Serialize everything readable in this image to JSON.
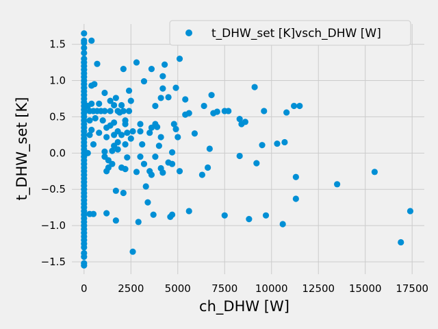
{
  "chart_data": {
    "type": "scatter",
    "xlabel": "ch_DHW [W]",
    "ylabel": "t_DHW_set [K]",
    "xlim": [
      -650,
      18150
    ],
    "ylim": [
      -1.67,
      1.78
    ],
    "xticks": [
      0,
      2500,
      5000,
      7500,
      10000,
      12500,
      15000,
      17500
    ],
    "yticks": [
      -1.5,
      -1.0,
      -0.5,
      0.0,
      0.5,
      1.0,
      1.5
    ],
    "xtick_labels": [
      "0",
      "2500",
      "5000",
      "7500",
      "10000",
      "12500",
      "15000",
      "17500"
    ],
    "ytick_labels": [
      "−1.5",
      "−1.0",
      "−0.5",
      "0.0",
      "0.5",
      "1.0",
      "1.5"
    ],
    "grid": true,
    "legend_position": "top-right",
    "series": [
      {
        "name": "t_DHW_set [K]vsch_DHW [W]",
        "color": "#008fd5",
        "points": [
          [
            0,
            1.65
          ],
          [
            0,
            1.55
          ],
          [
            0,
            1.52
          ],
          [
            0,
            1.45
          ],
          [
            0,
            1.38
          ],
          [
            0,
            1.3
          ],
          [
            0,
            1.25
          ],
          [
            0,
            1.2
          ],
          [
            0,
            1.15
          ],
          [
            0,
            1.1
          ],
          [
            0,
            1.05
          ],
          [
            0,
            1.0
          ],
          [
            0,
            0.95
          ],
          [
            0,
            0.9
          ],
          [
            0,
            0.85
          ],
          [
            0,
            0.8
          ],
          [
            0,
            0.75
          ],
          [
            0,
            0.7
          ],
          [
            0,
            0.65
          ],
          [
            0,
            0.6
          ],
          [
            0,
            0.55
          ],
          [
            0,
            0.5
          ],
          [
            0,
            0.45
          ],
          [
            0,
            0.4
          ],
          [
            0,
            0.35
          ],
          [
            0,
            0.3
          ],
          [
            0,
            0.25
          ],
          [
            0,
            0.2
          ],
          [
            0,
            0.15
          ],
          [
            0,
            0.1
          ],
          [
            0,
            0.05
          ],
          [
            0,
            0.0
          ],
          [
            0,
            -0.05
          ],
          [
            0,
            -0.1
          ],
          [
            0,
            -0.15
          ],
          [
            0,
            -0.2
          ],
          [
            0,
            -0.25
          ],
          [
            0,
            -0.3
          ],
          [
            0,
            -0.35
          ],
          [
            0,
            -0.4
          ],
          [
            0,
            -0.45
          ],
          [
            0,
            -0.5
          ],
          [
            0,
            -0.55
          ],
          [
            0,
            -0.6
          ],
          [
            0,
            -0.65
          ],
          [
            0,
            -0.7
          ],
          [
            0,
            -0.75
          ],
          [
            0,
            -0.8
          ],
          [
            0,
            -0.85
          ],
          [
            0,
            -0.9
          ],
          [
            0,
            -0.95
          ],
          [
            0,
            -1.0
          ],
          [
            0,
            -1.05
          ],
          [
            0,
            -1.1
          ],
          [
            0,
            -1.15
          ],
          [
            0,
            -1.2
          ],
          [
            0,
            -1.25
          ],
          [
            0,
            -1.3
          ],
          [
            0,
            -1.38
          ],
          [
            0,
            -1.43
          ],
          [
            0,
            -1.52
          ],
          [
            0,
            -1.55
          ],
          [
            400,
            1.55
          ],
          [
            700,
            1.23
          ],
          [
            550,
            0.95
          ],
          [
            400,
            0.93
          ],
          [
            1100,
            0.83
          ],
          [
            1700,
            0.76
          ],
          [
            2100,
            1.16
          ],
          [
            2400,
            0.86
          ],
          [
            2800,
            1.25
          ],
          [
            3200,
            0.99
          ],
          [
            3600,
            1.16
          ],
          [
            4300,
            1.22
          ],
          [
            4200,
            1.06
          ],
          [
            5100,
            1.3
          ],
          [
            300,
            0.58
          ],
          [
            500,
            0.58
          ],
          [
            700,
            0.58
          ],
          [
            900,
            0.58
          ],
          [
            1100,
            0.58
          ],
          [
            1400,
            0.58
          ],
          [
            1800,
            0.58
          ],
          [
            2100,
            0.58
          ],
          [
            2400,
            0.58
          ],
          [
            400,
            0.68
          ],
          [
            800,
            0.68
          ],
          [
            1400,
            0.72
          ],
          [
            1600,
            0.66
          ],
          [
            2000,
            0.66
          ],
          [
            2500,
            0.72
          ],
          [
            200,
            0.65
          ],
          [
            600,
            0.48
          ],
          [
            300,
            0.45
          ],
          [
            1000,
            0.45
          ],
          [
            1600,
            0.42
          ],
          [
            1900,
            0.56
          ],
          [
            2200,
            0.45
          ],
          [
            2200,
            0.4
          ],
          [
            1400,
            0.38
          ],
          [
            1200,
            0.35
          ],
          [
            1800,
            0.3
          ],
          [
            1600,
            0.25
          ],
          [
            2000,
            0.25
          ],
          [
            2300,
            0.28
          ],
          [
            400,
            0.32
          ],
          [
            800,
            0.28
          ],
          [
            1200,
            0.22
          ],
          [
            1800,
            0.15
          ],
          [
            2200,
            0.12
          ],
          [
            1600,
            0.1
          ],
          [
            500,
            0.12
          ],
          [
            300,
            0.25
          ],
          [
            200,
            0.0
          ],
          [
            1100,
            0.02
          ],
          [
            1500,
            0.03
          ],
          [
            1800,
            0.05
          ],
          [
            1100,
            -0.05
          ],
          [
            1300,
            -0.1
          ],
          [
            1500,
            -0.15
          ],
          [
            1300,
            -0.2
          ],
          [
            1200,
            -0.25
          ],
          [
            2000,
            -0.2
          ],
          [
            2200,
            -0.22
          ],
          [
            2300,
            -0.06
          ],
          [
            2600,
            0.3
          ],
          [
            2500,
            0.2
          ],
          [
            3000,
            0.4
          ],
          [
            3000,
            0.3
          ],
          [
            3100,
            0.12
          ],
          [
            3000,
            -0.05
          ],
          [
            3200,
            -0.15
          ],
          [
            3500,
            -0.25
          ],
          [
            3800,
            -0.05
          ],
          [
            4000,
            0.1
          ],
          [
            4100,
            0.22
          ],
          [
            3800,
            0.4
          ],
          [
            3900,
            0.36
          ],
          [
            3600,
            0.35
          ],
          [
            3500,
            0.28
          ],
          [
            4100,
            -0.21
          ],
          [
            4200,
            -0.27
          ],
          [
            4500,
            -0.13
          ],
          [
            4700,
            -0.15
          ],
          [
            4800,
            0.4
          ],
          [
            4900,
            0.33
          ],
          [
            5000,
            0.22
          ],
          [
            5100,
            -0.25
          ],
          [
            4500,
            0.77
          ],
          [
            4100,
            0.76
          ],
          [
            4200,
            0.89
          ],
          [
            3800,
            0.65
          ],
          [
            4700,
            0.01
          ],
          [
            3600,
            -0.3
          ],
          [
            2800,
            -0.26
          ],
          [
            3300,
            -0.46
          ],
          [
            3400,
            -0.68
          ],
          [
            3700,
            -0.85
          ],
          [
            4600,
            -0.88
          ],
          [
            4700,
            -0.85
          ],
          [
            2900,
            -0.95
          ],
          [
            1700,
            -0.93
          ],
          [
            1200,
            -0.83
          ],
          [
            500,
            -0.84
          ],
          [
            300,
            -0.84
          ],
          [
            1700,
            -0.52
          ],
          [
            2100,
            -0.55
          ],
          [
            2600,
            -1.36
          ],
          [
            5400,
            0.74
          ],
          [
            5400,
            0.53
          ],
          [
            5600,
            0.55
          ],
          [
            5900,
            0.27
          ],
          [
            4900,
            0.9
          ],
          [
            6400,
            0.65
          ],
          [
            6800,
            0.8
          ],
          [
            6900,
            0.55
          ],
          [
            7100,
            0.57
          ],
          [
            7500,
            0.58
          ],
          [
            7700,
            0.58
          ],
          [
            6700,
            0.06
          ],
          [
            6600,
            -0.2
          ],
          [
            6300,
            -0.3
          ],
          [
            5600,
            -0.8
          ],
          [
            7500,
            -0.86
          ],
          [
            8300,
            -0.04
          ],
          [
            8300,
            0.47
          ],
          [
            8400,
            0.4
          ],
          [
            8600,
            0.43
          ],
          [
            8800,
            -0.91
          ],
          [
            9100,
            0.91
          ],
          [
            9200,
            -0.14
          ],
          [
            9500,
            0.11
          ],
          [
            9600,
            0.58
          ],
          [
            9700,
            -0.86
          ],
          [
            10300,
            0.13
          ],
          [
            10600,
            -0.98
          ],
          [
            10700,
            0.15
          ],
          [
            10800,
            0.56
          ],
          [
            11200,
            0.65
          ],
          [
            11500,
            0.65
          ],
          [
            11300,
            -0.33
          ],
          [
            11300,
            -0.63
          ],
          [
            13500,
            -0.43
          ],
          [
            15500,
            -0.26
          ],
          [
            16900,
            -1.23
          ],
          [
            17400,
            -0.8
          ]
        ]
      }
    ]
  }
}
